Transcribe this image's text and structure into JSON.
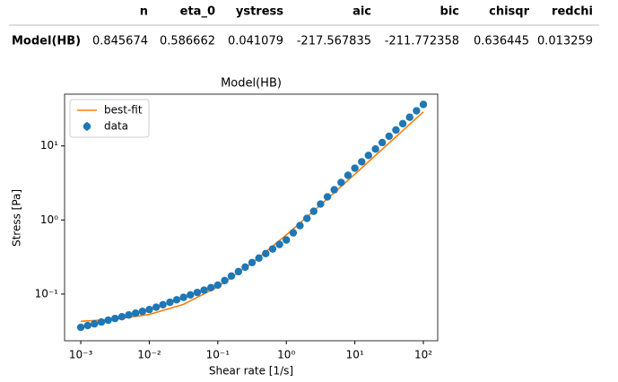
{
  "table": {
    "columns": [
      "n",
      "eta_0",
      "ystress",
      "aic",
      "bic",
      "chisqr",
      "redchi"
    ],
    "rows": [
      {
        "label": "Model(HB)",
        "cells": [
          "0.845674",
          "0.586662",
          "0.041079",
          "-217.567835",
          "-211.772358",
          "0.636445",
          "0.013259"
        ]
      }
    ]
  },
  "chart_data": {
    "type": "scatter",
    "title": "Model(HB)",
    "x_label": "Shear rate [1/s]",
    "y_label": "Stress [Pa]",
    "log_x": true,
    "log_y": true,
    "grid": false,
    "legend": "upper left",
    "xlim": [
      0.00058,
      162
    ],
    "ylim": [
      0.0234,
      50
    ],
    "xticks": [
      {
        "value": 0.001,
        "label": "10⁻³"
      },
      {
        "value": 0.01,
        "label": "10⁻²"
      },
      {
        "value": 0.1,
        "label": "10⁻¹"
      },
      {
        "value": 1,
        "label": "10⁰"
      },
      {
        "value": 10,
        "label": "10¹"
      },
      {
        "value": 100,
        "label": "10²"
      }
    ],
    "yticks": [
      {
        "value": 0.1,
        "label": "10⁻¹"
      },
      {
        "value": 1,
        "label": "10⁰"
      },
      {
        "value": 10,
        "label": "10¹"
      }
    ],
    "series": [
      {
        "name": "best-fit",
        "color": "#ff7f0e",
        "x": [
          0.001,
          0.00316,
          0.01,
          0.0316,
          0.1,
          0.316,
          1,
          3.16,
          10,
          31.6,
          100
        ],
        "values": [
          0.0428,
          0.0456,
          0.053,
          0.0727,
          0.125,
          0.263,
          0.628,
          1.595,
          4.156,
          10.94,
          28.84
        ]
      },
      {
        "name": "data",
        "color": "#1f77b4",
        "x": [
          0.001,
          0.00126,
          0.00158,
          0.002,
          0.00251,
          0.00316,
          0.00398,
          0.00501,
          0.00631,
          0.00794,
          0.01,
          0.0126,
          0.0158,
          0.02,
          0.0251,
          0.0316,
          0.0398,
          0.0501,
          0.0631,
          0.0794,
          0.1,
          0.126,
          0.158,
          0.2,
          0.251,
          0.316,
          0.398,
          0.501,
          0.631,
          0.794,
          1,
          1.26,
          1.58,
          2,
          2.51,
          3.16,
          3.98,
          5.01,
          6.31,
          7.94,
          10,
          12.6,
          15.8,
          20,
          25.1,
          31.6,
          39.8,
          50.1,
          63.1,
          79.4,
          100
        ],
        "values": [
          0.0355,
          0.0375,
          0.0396,
          0.0419,
          0.0443,
          0.0468,
          0.0494,
          0.0522,
          0.0552,
          0.0583,
          0.0617,
          0.0665,
          0.0718,
          0.0774,
          0.0836,
          0.0902,
          0.0973,
          0.105,
          0.113,
          0.122,
          0.132,
          0.152,
          0.175,
          0.201,
          0.231,
          0.266,
          0.306,
          0.352,
          0.406,
          0.467,
          0.537,
          0.671,
          0.839,
          1.05,
          1.31,
          1.64,
          2.05,
          2.56,
          3.21,
          4.01,
          5.01,
          6.11,
          7.45,
          9.08,
          11.1,
          13.5,
          16.4,
          20.0,
          24.4,
          29.8,
          36.3
        ]
      }
    ]
  }
}
